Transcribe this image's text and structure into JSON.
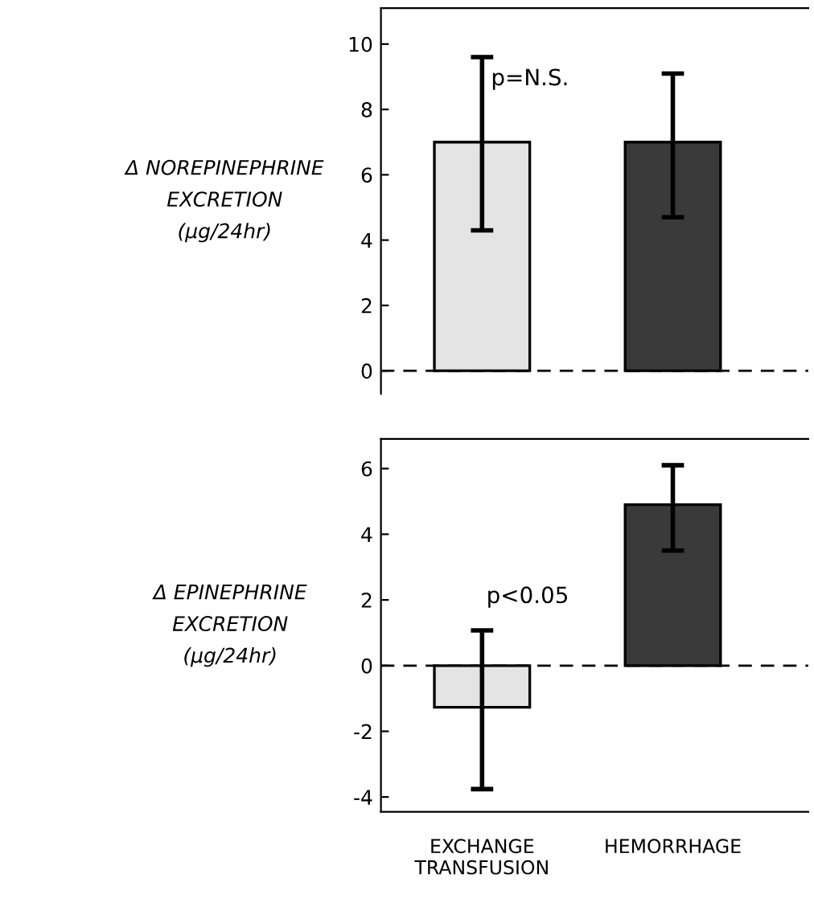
{
  "chart_data": [
    {
      "type": "bar",
      "ylabel": "Δ NOREPINEPHRINE\nEXCRETION\n(μg/24hr)",
      "categories": [
        null,
        null
      ],
      "values": [
        7.0,
        7.0
      ],
      "errors": [
        [
          4.3,
          9.6
        ],
        [
          4.7,
          9.1
        ]
      ],
      "colors": [
        "#e4e4e4",
        "#3a3a3a"
      ],
      "ylim": [
        -0.7,
        11.1
      ],
      "yticks": [
        0,
        2,
        4,
        6,
        8,
        10
      ],
      "tick_labels": "y",
      "ref_lines": [
        {
          "axis": "y",
          "value": 0,
          "line_style": "dashed"
        }
      ],
      "annotations": [
        "p=N.S."
      ],
      "grid": false,
      "legend": false
    },
    {
      "type": "bar",
      "ylabel": "Δ EPINEPHRINE\nEXCRETION\n(μg/24hr)",
      "categories": [
        "EXCHANGE\nTRANSFUSION",
        "HEMORRHAGE"
      ],
      "values": [
        -1.27,
        4.9
      ],
      "errors": [
        [
          -3.76,
          1.07
        ],
        [
          3.5,
          6.1
        ]
      ],
      "colors": [
        "#e4e4e4",
        "#3a3a3a"
      ],
      "ylim": [
        -4.45,
        6.9
      ],
      "yticks": [
        -4,
        -2,
        0,
        2,
        4,
        6
      ],
      "ref_lines": [
        {
          "axis": "y",
          "value": 0,
          "line_style": "dashed"
        }
      ],
      "annotations": [
        "p<0.05"
      ],
      "grid": false,
      "legend": false
    }
  ]
}
